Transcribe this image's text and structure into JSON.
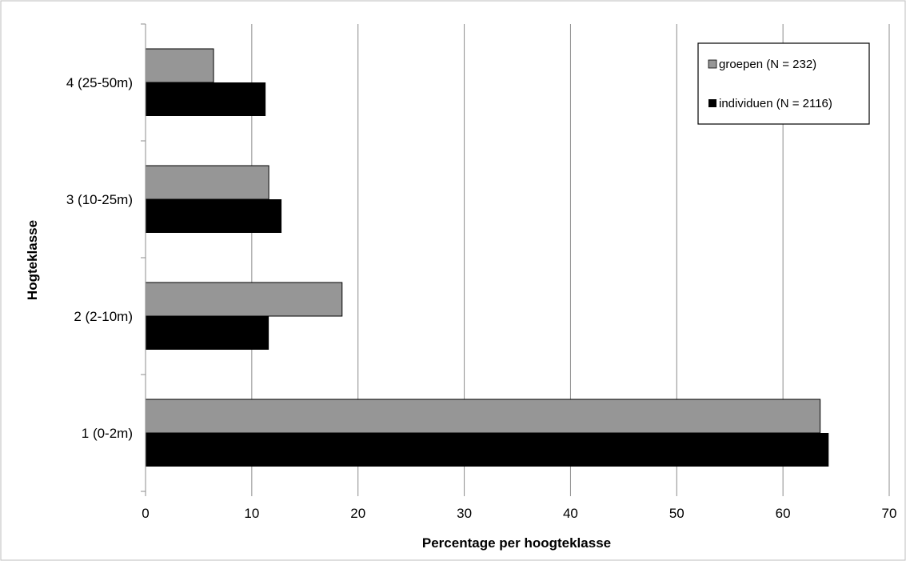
{
  "chart_data": {
    "type": "bar",
    "orientation": "horizontal",
    "title": "",
    "xlabel": "Percentage per hoogteklasse",
    "ylabel": "Hogteklasse",
    "categories": [
      "1 (0-2m)",
      "2 (2-10m)",
      "3 (10-25m)",
      "4 (25-50m)"
    ],
    "series": [
      {
        "name": "groepen (N = 232)",
        "color": "#969696",
        "values": [
          63.5,
          18.5,
          11.6,
          6.4
        ]
      },
      {
        "name": "individuen (N = 2116)",
        "color": "#000000",
        "values": [
          64.3,
          11.6,
          12.8,
          11.3
        ]
      }
    ],
    "xlim": [
      0,
      70
    ],
    "xticks": [
      "0",
      "10",
      "20",
      "30",
      "40",
      "50",
      "60",
      "70"
    ],
    "grid": true,
    "legend_position": "top-right"
  }
}
